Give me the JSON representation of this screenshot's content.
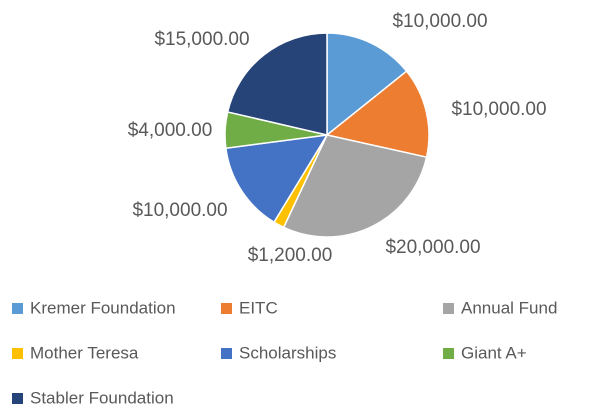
{
  "chart_data": {
    "type": "pie",
    "categories": [
      "Kremer Foundation",
      "EITC",
      "Annual Fund",
      "Mother Teresa",
      "Scholarships",
      "Giant A+",
      "Stabler Foundation"
    ],
    "values": [
      10000,
      10000,
      20000,
      1200,
      10000,
      4000,
      15000
    ],
    "value_labels": [
      "$10,000.00",
      "$10,000.00",
      "$20,000.00",
      "$1,200.00",
      "$10,000.00",
      "$4,000.00",
      "$15,000.00"
    ],
    "colors": [
      "#5b9bd5",
      "#ed7d31",
      "#a5a5a5",
      "#ffc000",
      "#4472c4",
      "#70ad47",
      "#264478"
    ],
    "legend": "bottom"
  }
}
